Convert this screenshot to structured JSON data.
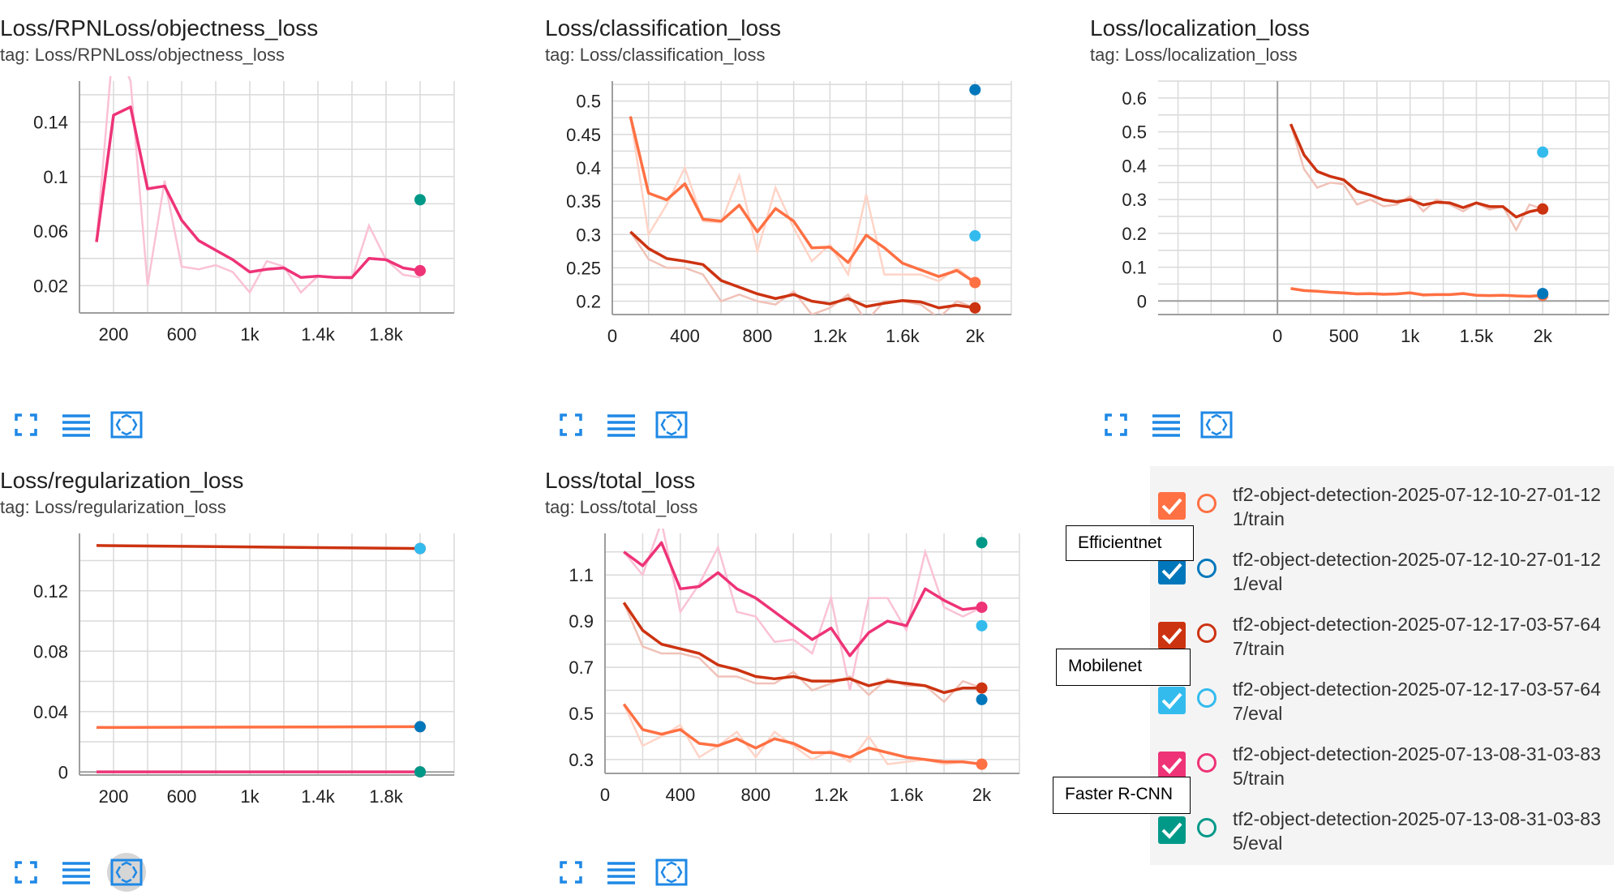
{
  "runs": [
    {
      "id": "eff-train",
      "name": "tf2-object-detection-2025-07-12-10-27-01-121/train",
      "color": "#ff7043"
    },
    {
      "id": "eff-eval",
      "name": "tf2-object-detection-2025-07-12-10-27-01-121/eval",
      "color": "#0077bb"
    },
    {
      "id": "mob-train",
      "name": "tf2-object-detection-2025-07-12-17-03-57-647/train",
      "color": "#cc3311"
    },
    {
      "id": "mob-eval",
      "name": "tf2-object-detection-2025-07-12-17-03-57-647/eval",
      "color": "#33bbee"
    },
    {
      "id": "frc-train",
      "name": "tf2-object-detection-2025-07-13-08-31-03-835/train",
      "color": "#ee3377"
    },
    {
      "id": "frc-eval",
      "name": "tf2-object-detection-2025-07-13-08-31-03-835/eval",
      "color": "#009988"
    }
  ],
  "callouts": {
    "efficientnet": "Efficientnet",
    "mobilenet": "Mobilenet",
    "faster_rcnn": "Faster R-CNN"
  },
  "chart_data": [
    {
      "type": "line",
      "title": "Loss/RPNLoss/objectness_loss",
      "tag": "tag: Loss/RPNLoss/objectness_loss",
      "xlim": [
        0,
        2200
      ],
      "ylim": [
        0,
        0.17
      ],
      "xticks": [
        200,
        600,
        1000,
        1400,
        1800
      ],
      "xtick_labels": [
        "200",
        "600",
        "1k",
        "1.4k",
        "1.8k"
      ],
      "yticks": [
        0.02,
        0.06,
        0.1,
        0.14
      ],
      "ytick_labels": [
        "0.02",
        "0.06",
        "0.1",
        "0.14"
      ],
      "series": [
        {
          "run": "frc-train",
          "x": [
            100,
            200,
            300,
            400,
            500,
            600,
            700,
            800,
            900,
            1000,
            1100,
            1200,
            1300,
            1400,
            1500,
            1600,
            1700,
            1800,
            1900,
            2000
          ],
          "y": [
            0.052,
            0.145,
            0.151,
            0.091,
            0.093,
            0.068,
            0.053,
            0.046,
            0.039,
            0.03,
            0.032,
            0.033,
            0.026,
            0.027,
            0.026,
            0.026,
            0.04,
            0.039,
            0.033,
            0.031
          ],
          "raw": [
            0.052,
            0.2,
            0.17,
            0.02,
            0.097,
            0.034,
            0.032,
            0.035,
            0.03,
            0.015,
            0.038,
            0.034,
            0.015,
            0.027,
            0.026,
            0.025,
            0.064,
            0.039,
            0.028,
            0.026
          ]
        },
        {
          "run": "frc-eval",
          "x": [
            2000
          ],
          "y": [
            0.083
          ]
        }
      ]
    },
    {
      "type": "line",
      "title": "Loss/classification_loss",
      "tag": "tag: Loss/classification_loss",
      "xlim": [
        0,
        2200
      ],
      "ylim": [
        0.18,
        0.53
      ],
      "xticks": [
        0,
        400,
        800,
        1200,
        1600,
        2000
      ],
      "xtick_labels": [
        "0",
        "400",
        "800",
        "1.2k",
        "1.6k",
        "2k"
      ],
      "yticks": [
        0.2,
        0.25,
        0.3,
        0.35,
        0.4,
        0.45,
        0.5
      ],
      "ytick_labels": [
        "0.2",
        "0.25",
        "0.3",
        "0.35",
        "0.4",
        "0.45",
        "0.5"
      ],
      "series": [
        {
          "run": "eff-train",
          "x": [
            100,
            200,
            300,
            400,
            500,
            600,
            700,
            800,
            900,
            1000,
            1100,
            1200,
            1300,
            1400,
            1500,
            1600,
            1700,
            1800,
            1900,
            2000
          ],
          "y": [
            0.477,
            0.362,
            0.352,
            0.376,
            0.323,
            0.32,
            0.344,
            0.304,
            0.339,
            0.32,
            0.28,
            0.281,
            0.258,
            0.299,
            0.28,
            0.257,
            0.247,
            0.237,
            0.246,
            0.228
          ],
          "raw": [
            0.477,
            0.3,
            0.345,
            0.4,
            0.32,
            0.318,
            0.388,
            0.275,
            0.37,
            0.31,
            0.26,
            0.285,
            0.24,
            0.36,
            0.24,
            0.24,
            0.24,
            0.23,
            0.25,
            0.228
          ]
        },
        {
          "run": "mob-train",
          "x": [
            100,
            200,
            300,
            400,
            500,
            600,
            700,
            800,
            900,
            1000,
            1100,
            1200,
            1300,
            1400,
            1500,
            1600,
            1700,
            1800,
            1900,
            2000
          ],
          "y": [
            0.304,
            0.279,
            0.264,
            0.26,
            0.255,
            0.231,
            0.221,
            0.211,
            0.204,
            0.21,
            0.2,
            0.196,
            0.204,
            0.192,
            0.197,
            0.201,
            0.199,
            0.19,
            0.194,
            0.19
          ],
          "raw": [
            0.304,
            0.263,
            0.25,
            0.25,
            0.24,
            0.2,
            0.21,
            0.2,
            0.195,
            0.215,
            0.18,
            0.19,
            0.21,
            0.17,
            0.2,
            0.2,
            0.195,
            0.175,
            0.2,
            0.19
          ]
        },
        {
          "run": "eff-eval",
          "x": [
            2000
          ],
          "y": [
            0.517
          ]
        },
        {
          "run": "mob-eval",
          "x": [
            2000
          ],
          "y": [
            0.298
          ]
        }
      ]
    },
    {
      "type": "line",
      "title": "Loss/localization_loss",
      "tag": "tag: Loss/localization_loss",
      "xlim": [
        -900,
        2500
      ],
      "ylim": [
        -0.04,
        0.65
      ],
      "xticks": [
        0,
        500,
        1000,
        1500,
        2000
      ],
      "xtick_labels": [
        "0",
        "500",
        "1k",
        "1.5k",
        "2k"
      ],
      "yticks": [
        0,
        0.1,
        0.2,
        0.3,
        0.4,
        0.5,
        0.6
      ],
      "ytick_labels": [
        "0",
        "0.1",
        "0.2",
        "0.3",
        "0.4",
        "0.5",
        "0.6"
      ],
      "series": [
        {
          "run": "mob-train",
          "x": [
            100,
            200,
            300,
            400,
            500,
            600,
            700,
            800,
            900,
            1000,
            1100,
            1200,
            1300,
            1400,
            1500,
            1600,
            1700,
            1800,
            1900,
            2000
          ],
          "y": [
            0.523,
            0.432,
            0.383,
            0.368,
            0.358,
            0.325,
            0.313,
            0.299,
            0.293,
            0.3,
            0.284,
            0.292,
            0.29,
            0.276,
            0.29,
            0.279,
            0.279,
            0.248,
            0.264,
            0.272
          ],
          "raw": [
            0.523,
            0.39,
            0.335,
            0.35,
            0.345,
            0.285,
            0.3,
            0.28,
            0.285,
            0.31,
            0.265,
            0.3,
            0.285,
            0.265,
            0.29,
            0.27,
            0.28,
            0.21,
            0.285,
            0.272
          ]
        },
        {
          "run": "eff-train",
          "x": [
            100,
            200,
            300,
            400,
            500,
            600,
            700,
            800,
            900,
            1000,
            1100,
            1200,
            1300,
            1400,
            1500,
            1600,
            1700,
            1800,
            1900,
            2000
          ],
          "y": [
            0.037,
            0.031,
            0.029,
            0.026,
            0.024,
            0.021,
            0.022,
            0.02,
            0.021,
            0.024,
            0.018,
            0.019,
            0.019,
            0.022,
            0.017,
            0.016,
            0.017,
            0.015,
            0.014,
            0.017
          ],
          "raw": [
            0.037,
            0.03,
            0.028,
            0.024,
            0.022,
            0.02,
            0.02,
            0.019,
            0.02,
            0.026,
            0.016,
            0.018,
            0.018,
            0.024,
            0.016,
            0.015,
            0.017,
            0.014,
            0.013,
            0.017
          ]
        },
        {
          "run": "mob-eval",
          "x": [
            2000
          ],
          "y": [
            0.44
          ]
        },
        {
          "run": "eff-eval",
          "x": [
            2000
          ],
          "y": [
            0.022
          ]
        }
      ]
    },
    {
      "type": "line",
      "title": "Loss/regularization_loss",
      "tag": "tag: Loss/regularization_loss",
      "xlim": [
        0,
        2200
      ],
      "ylim": [
        -0.002,
        0.158
      ],
      "xticks": [
        200,
        600,
        1000,
        1400,
        1800
      ],
      "xtick_labels": [
        "200",
        "600",
        "1k",
        "1.4k",
        "1.8k"
      ],
      "yticks": [
        0,
        0.04,
        0.08,
        0.12
      ],
      "ytick_labels": [
        "0",
        "0.04",
        "0.08",
        "0.12"
      ],
      "series": [
        {
          "run": "mob-train",
          "x": [
            100,
            2000
          ],
          "y": [
            0.15,
            0.148
          ]
        },
        {
          "run": "eff-train",
          "x": [
            100,
            2000
          ],
          "y": [
            0.0295,
            0.03
          ]
        },
        {
          "run": "frc-train",
          "x": [
            100,
            2000
          ],
          "y": [
            0.0001,
            0.0001
          ]
        },
        {
          "run": "mob-eval",
          "x": [
            2000
          ],
          "y": [
            0.148
          ]
        },
        {
          "run": "eff-eval",
          "x": [
            2000
          ],
          "y": [
            0.03
          ]
        },
        {
          "run": "frc-eval",
          "x": [
            2000
          ],
          "y": [
            0.0001
          ]
        }
      ]
    },
    {
      "type": "line",
      "title": "Loss/total_loss",
      "tag": "tag: Loss/total_loss",
      "xlim": [
        0,
        2200
      ],
      "ylim": [
        0.24,
        1.28
      ],
      "xticks": [
        0,
        400,
        800,
        1200,
        1600,
        2000
      ],
      "xtick_labels": [
        "0",
        "400",
        "800",
        "1.2k",
        "1.6k",
        "2k"
      ],
      "yticks": [
        0.3,
        0.5,
        0.7,
        0.9,
        1.1
      ],
      "ytick_labels": [
        "0.3",
        "0.5",
        "0.7",
        "0.9",
        "1.1"
      ],
      "series": [
        {
          "run": "frc-train",
          "x": [
            100,
            200,
            300,
            400,
            500,
            600,
            700,
            800,
            900,
            1000,
            1100,
            1200,
            1300,
            1400,
            1500,
            1600,
            1700,
            1800,
            1900,
            2000
          ],
          "y": [
            1.2,
            1.14,
            1.24,
            1.04,
            1.05,
            1.11,
            1.04,
            1.0,
            0.94,
            0.88,
            0.82,
            0.87,
            0.75,
            0.85,
            0.9,
            0.88,
            1.04,
            0.99,
            0.95,
            0.96
          ],
          "raw": [
            1.2,
            1.1,
            1.33,
            0.94,
            1.06,
            1.22,
            0.94,
            0.92,
            0.81,
            0.82,
            0.76,
            1.0,
            0.6,
            1.0,
            1.0,
            0.86,
            1.2,
            0.96,
            0.92,
            0.96
          ]
        },
        {
          "run": "mob-train",
          "x": [
            100,
            200,
            300,
            400,
            500,
            600,
            700,
            800,
            900,
            1000,
            1100,
            1200,
            1300,
            1400,
            1500,
            1600,
            1700,
            1800,
            1900,
            2000
          ],
          "y": [
            0.98,
            0.86,
            0.8,
            0.78,
            0.76,
            0.71,
            0.69,
            0.66,
            0.65,
            0.66,
            0.64,
            0.64,
            0.65,
            0.62,
            0.64,
            0.63,
            0.62,
            0.59,
            0.61,
            0.61
          ],
          "raw": [
            0.98,
            0.79,
            0.76,
            0.76,
            0.74,
            0.66,
            0.66,
            0.63,
            0.63,
            0.68,
            0.6,
            0.63,
            0.66,
            0.58,
            0.65,
            0.62,
            0.62,
            0.55,
            0.64,
            0.61
          ]
        },
        {
          "run": "eff-train",
          "x": [
            100,
            200,
            300,
            400,
            500,
            600,
            700,
            800,
            900,
            1000,
            1100,
            1200,
            1300,
            1400,
            1500,
            1600,
            1700,
            1800,
            1900,
            2000
          ],
          "y": [
            0.54,
            0.43,
            0.41,
            0.43,
            0.37,
            0.36,
            0.39,
            0.35,
            0.39,
            0.37,
            0.33,
            0.33,
            0.31,
            0.35,
            0.33,
            0.31,
            0.3,
            0.29,
            0.29,
            0.28
          ],
          "raw": [
            0.54,
            0.36,
            0.4,
            0.45,
            0.31,
            0.36,
            0.42,
            0.31,
            0.42,
            0.36,
            0.3,
            0.34,
            0.29,
            0.4,
            0.28,
            0.29,
            0.3,
            0.28,
            0.29,
            0.28
          ]
        },
        {
          "run": "frc-eval",
          "x": [
            2000
          ],
          "y": [
            1.24
          ]
        },
        {
          "run": "mob-eval",
          "x": [
            2000
          ],
          "y": [
            0.88
          ]
        },
        {
          "run": "eff-eval",
          "x": [
            2000
          ],
          "y": [
            0.56
          ]
        }
      ]
    }
  ]
}
